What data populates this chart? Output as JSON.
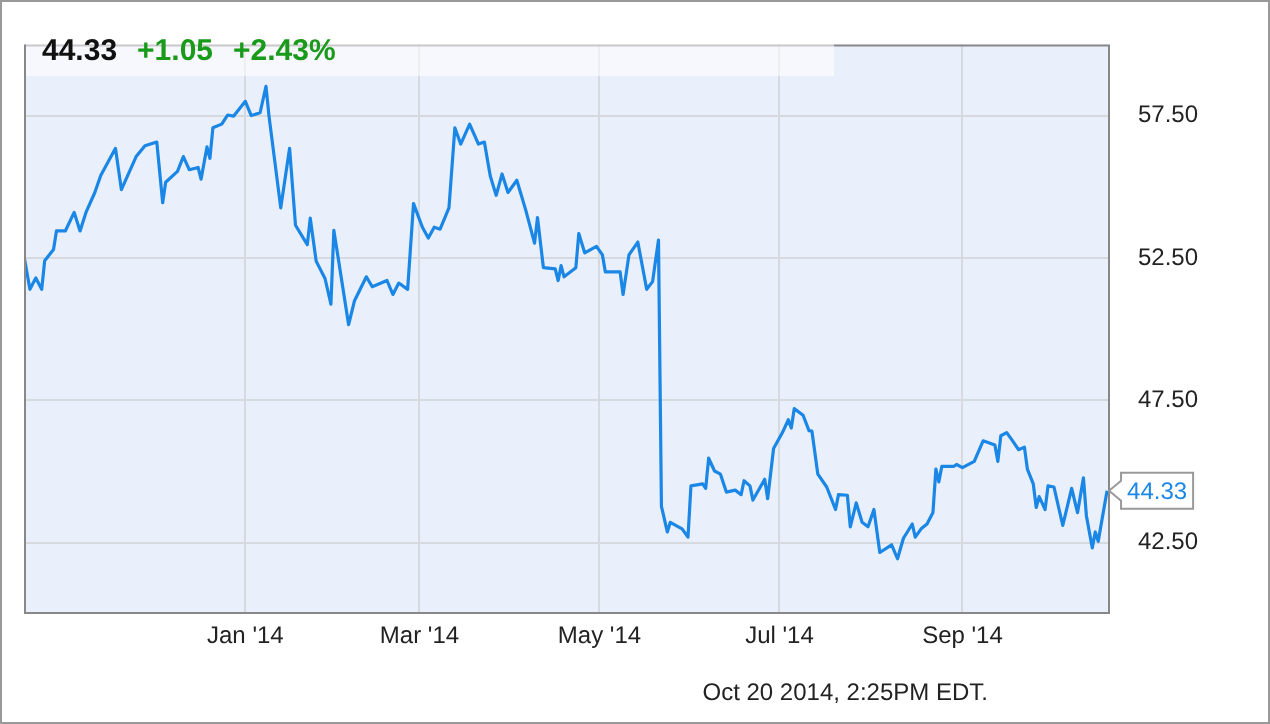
{
  "chart_data": {
    "type": "line",
    "x": [
      "2013-10-18",
      "2013-10-20",
      "2013-10-22",
      "2013-10-24",
      "2013-10-25",
      "2013-10-28",
      "2013-10-29",
      "2013-11-01",
      "2013-11-04",
      "2013-11-06",
      "2013-11-08",
      "2013-11-11",
      "2013-11-13",
      "2013-11-18",
      "2013-11-20",
      "2013-11-25",
      "2013-11-28",
      "2013-12-02",
      "2013-12-04",
      "2013-12-05",
      "2013-12-09",
      "2013-12-11",
      "2013-12-13",
      "2013-12-16",
      "2013-12-17",
      "2013-12-19",
      "2013-12-20",
      "2013-12-21",
      "2013-12-24",
      "2013-12-26",
      "2013-12-28",
      "2014-01-01",
      "2014-01-03",
      "2014-01-06",
      "2014-01-08",
      "2014-01-09",
      "2014-01-13",
      "2014-01-16",
      "2014-01-18",
      "2014-01-22",
      "2014-01-23",
      "2014-01-25",
      "2014-01-28",
      "2014-01-30",
      "2014-01-31",
      "2014-02-05",
      "2014-02-07",
      "2014-02-11",
      "2014-02-13",
      "2014-02-18",
      "2014-02-20",
      "2014-02-22",
      "2014-02-25",
      "2014-02-27",
      "2014-03-02",
      "2014-03-04",
      "2014-03-06",
      "2014-03-08",
      "2014-03-11",
      "2014-03-13",
      "2014-03-15",
      "2014-03-18",
      "2014-03-21",
      "2014-03-23",
      "2014-03-25",
      "2014-03-27",
      "2014-03-29",
      "2014-03-31",
      "2014-04-03",
      "2014-04-06",
      "2014-04-09",
      "2014-04-10",
      "2014-04-12",
      "2014-04-16",
      "2014-04-17",
      "2014-04-18",
      "2014-04-19",
      "2014-04-23",
      "2014-04-24",
      "2014-04-26",
      "2014-04-30",
      "2014-05-02",
      "2014-05-03",
      "2014-05-08",
      "2014-05-09",
      "2014-05-11",
      "2014-05-14",
      "2014-05-17",
      "2014-05-19",
      "2014-05-21",
      "2014-05-22",
      "2014-05-24",
      "2014-05-25",
      "2014-05-29",
      "2014-05-31",
      "2014-06-01",
      "2014-06-05",
      "2014-06-06",
      "2014-06-07",
      "2014-06-09",
      "2014-06-11",
      "2014-06-13",
      "2014-06-16",
      "2014-06-18",
      "2014-06-19",
      "2014-06-21",
      "2014-06-22",
      "2014-06-26",
      "2014-06-27",
      "2014-06-29",
      "2014-07-02",
      "2014-07-04",
      "2014-07-05",
      "2014-07-06",
      "2014-07-09",
      "2014-07-11",
      "2014-07-12",
      "2014-07-14",
      "2014-07-17",
      "2014-07-20",
      "2014-07-21",
      "2014-07-24",
      "2014-07-25",
      "2014-07-27",
      "2014-07-29",
      "2014-07-31",
      "2014-08-02",
      "2014-08-04",
      "2014-08-08",
      "2014-08-10",
      "2014-08-12",
      "2014-08-15",
      "2014-08-16",
      "2014-08-18",
      "2014-08-20",
      "2014-08-22",
      "2014-08-23",
      "2014-08-24",
      "2014-08-25",
      "2014-08-29",
      "2014-08-30",
      "2014-09-01",
      "2014-09-05",
      "2014-09-08",
      "2014-09-12",
      "2014-09-13",
      "2014-09-14",
      "2014-09-16",
      "2014-09-18",
      "2014-09-20",
      "2014-09-22",
      "2014-09-23",
      "2014-09-25",
      "2014-09-26",
      "2014-09-27",
      "2014-09-29",
      "2014-09-30",
      "2014-10-02",
      "2014-10-05",
      "2014-10-08",
      "2014-10-10",
      "2014-10-12",
      "2014-10-13",
      "2014-10-15",
      "2014-10-16",
      "2014-10-17",
      "2014-10-20"
    ],
    "series": [
      {
        "color": "#1a86e6",
        "values": [
          52.57,
          51.4,
          51.8,
          51.4,
          52.4,
          52.8,
          53.45,
          53.45,
          54.1,
          53.45,
          54.1,
          54.8,
          55.4,
          56.35,
          54.9,
          56.06,
          56.44,
          56.57,
          54.44,
          55.16,
          55.54,
          56.06,
          55.6,
          55.68,
          55.27,
          56.4,
          56.0,
          57.07,
          57.2,
          57.52,
          57.48,
          58.0,
          57.5,
          57.6,
          58.53,
          57.5,
          54.26,
          56.35,
          53.65,
          52.97,
          53.9,
          52.39,
          51.78,
          50.88,
          53.47,
          50.16,
          51.0,
          51.84,
          51.49,
          51.71,
          51.22,
          51.62,
          51.4,
          54.41,
          53.58,
          53.2,
          53.58,
          53.51,
          54.26,
          57.07,
          56.5,
          57.2,
          56.5,
          56.57,
          55.38,
          54.7,
          55.45,
          54.8,
          55.23,
          54.19,
          53.02,
          53.92,
          52.16,
          52.12,
          51.71,
          52.23,
          51.84,
          52.16,
          53.36,
          52.68,
          52.91,
          52.61,
          52.01,
          52.01,
          51.22,
          52.61,
          53.06,
          51.4,
          51.67,
          53.13,
          43.78,
          42.88,
          43.22,
          42.99,
          42.7,
          44.5,
          44.57,
          44.41,
          45.47,
          45.02,
          44.91,
          44.28,
          44.35,
          44.19,
          44.68,
          44.5,
          44.0,
          44.73,
          44.05,
          45.81,
          46.37,
          46.82,
          46.53,
          47.21,
          46.98,
          46.44,
          46.42,
          44.91,
          44.46,
          43.67,
          44.19,
          44.17,
          43.06,
          43.9,
          43.22,
          43.06,
          43.67,
          42.16,
          42.43,
          41.94,
          42.66,
          43.16,
          42.7,
          42.99,
          43.16,
          43.56,
          45.09,
          44.64,
          45.18,
          45.18,
          45.25,
          45.14,
          45.36,
          46.08,
          45.93,
          45.36,
          46.26,
          46.37,
          46.08,
          45.77,
          45.86,
          45.09,
          44.57,
          43.74,
          44.12,
          43.67,
          44.5,
          44.46,
          43.11,
          44.41,
          43.56,
          44.78,
          43.45,
          42.32,
          42.88,
          42.55,
          44.33
        ]
      }
    ],
    "xlim": [
      "2013-10-18",
      "2014-10-21"
    ],
    "xticks": [
      {
        "value": "2014-01-01",
        "label": "Jan '14"
      },
      {
        "value": "2014-03-01",
        "label": "Mar '14"
      },
      {
        "value": "2014-05-01",
        "label": "May '14"
      },
      {
        "value": "2014-07-01",
        "label": "Jul '14"
      },
      {
        "value": "2014-09-01",
        "label": "Sep '14"
      }
    ],
    "ylim": [
      40,
      60
    ],
    "yticks": [
      {
        "value": 42.5,
        "label": "42.50"
      },
      {
        "value": 47.5,
        "label": "47.50"
      },
      {
        "value": 52.5,
        "label": "52.50"
      },
      {
        "value": 57.5,
        "label": "57.50"
      }
    ],
    "grid": true,
    "marker": "none",
    "line_style": "solid",
    "legend": false,
    "annotations": [
      "44.33",
      "+1.05",
      "+2.43%",
      "Oct 20 2014, 2:25PM EDT.",
      {
        "text": "44.33",
        "x": "2014-10-20",
        "y": 44.33
      }
    ]
  }
}
